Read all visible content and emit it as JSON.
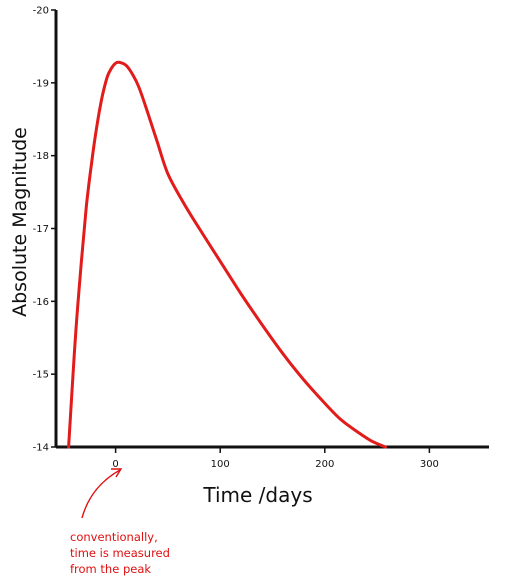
{
  "chart_data": {
    "type": "line",
    "title": "",
    "xlabel": "Time /days",
    "ylabel": "Absolute Magnitude",
    "xlim": [
      -57,
      357
    ],
    "ylim": [
      -14,
      -20
    ],
    "y_inverted": true,
    "x_ticks": [
      0,
      100,
      200,
      300
    ],
    "x_tick_labels": [
      "0",
      "100",
      "200",
      "300"
    ],
    "y_ticks": [
      -20,
      -19,
      -18,
      -17,
      -16,
      -15,
      -14
    ],
    "y_tick_labels": [
      "-20",
      "-19",
      "-18",
      "-17",
      "-16",
      "-15",
      "-14"
    ],
    "grid": false,
    "legend": "none",
    "series": [
      {
        "color": "#e21b1b",
        "x": [
          -45,
          -42,
          -38,
          -33,
          -28,
          -23,
          -18,
          -13,
          -8,
          -4,
          0,
          4,
          10,
          16,
          22,
          30,
          40,
          50,
          65,
          80,
          100,
          120,
          140,
          160,
          180,
          200,
          215,
          230,
          245,
          258
        ],
        "y": [
          -14.0,
          -14.7,
          -15.6,
          -16.5,
          -17.3,
          -17.9,
          -18.4,
          -18.8,
          -19.08,
          -19.2,
          -19.27,
          -19.28,
          -19.24,
          -19.12,
          -18.95,
          -18.62,
          -18.18,
          -17.75,
          -17.35,
          -17.0,
          -16.55,
          -16.1,
          -15.68,
          -15.28,
          -14.92,
          -14.6,
          -14.38,
          -14.22,
          -14.08,
          -14.0
        ]
      }
    ],
    "annotations": [
      {
        "text_lines": [
          "conventionally,",
          "time is measured",
          "from the peak"
        ],
        "points_to_x": 0
      }
    ]
  },
  "colors": {
    "axis": "#111111",
    "curve": "#e21b1b",
    "annotation": "#e01010"
  }
}
